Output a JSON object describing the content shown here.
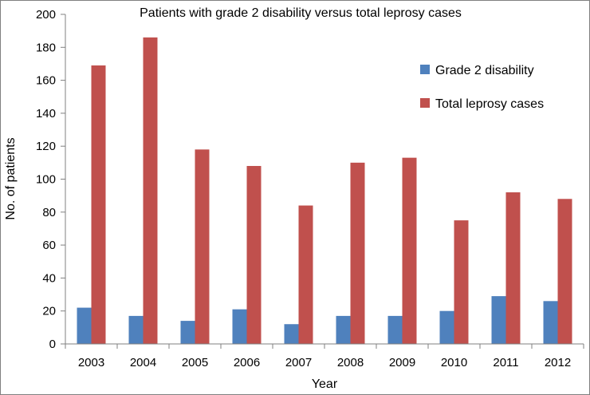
{
  "chart_data": {
    "type": "bar",
    "title": "Patients with grade 2 disability versus total leprosy cases",
    "xlabel": "Year",
    "ylabel": "No. of patients",
    "ylim": [
      0,
      200
    ],
    "yticks": [
      0,
      20,
      40,
      60,
      80,
      100,
      120,
      140,
      160,
      180,
      200
    ],
    "categories": [
      "2003",
      "2004",
      "2005",
      "2006",
      "2007",
      "2008",
      "2009",
      "2010",
      "2011",
      "2012"
    ],
    "series": [
      {
        "name": "Grade 2 disability",
        "color": "#4f81bd",
        "values": [
          22,
          17,
          14,
          21,
          12,
          17,
          17,
          20,
          29,
          26
        ]
      },
      {
        "name": "Total leprosy cases",
        "color": "#c0504d",
        "values": [
          169,
          186,
          118,
          108,
          84,
          110,
          113,
          75,
          92,
          88
        ]
      }
    ],
    "grid": false,
    "legend_position": "top-right"
  }
}
